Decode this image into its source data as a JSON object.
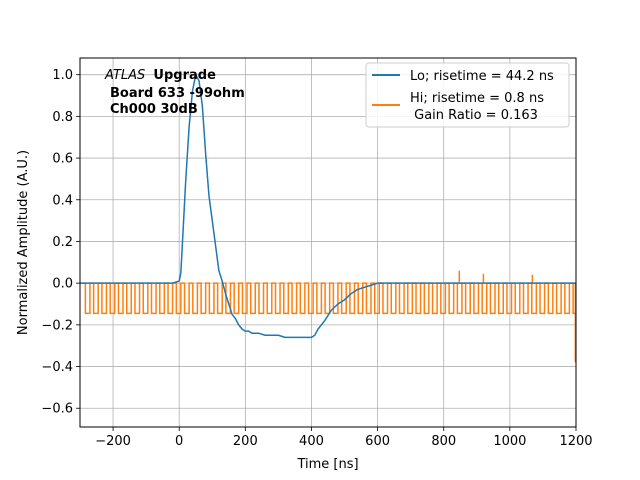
{
  "chart_data": {
    "type": "line",
    "title": "",
    "xlabel": "Time [ns]",
    "ylabel": "Normalized Amplitude (A.U.)",
    "xlim": [
      -300,
      1200
    ],
    "ylim": [
      -0.69,
      1.08
    ],
    "grid": true,
    "legend_position": "top-right",
    "x_ticks": [
      -200,
      0,
      200,
      400,
      600,
      800,
      1000,
      1200
    ],
    "x_tick_labels": [
      "−200",
      "0",
      "200",
      "400",
      "600",
      "800",
      "1000",
      "1200"
    ],
    "y_ticks": [
      -0.6,
      -0.4,
      -0.2,
      0.0,
      0.2,
      0.4,
      0.6,
      0.8,
      1.0
    ],
    "y_tick_labels": [
      "−0.6",
      "−0.4",
      "−0.2",
      "0.0",
      "0.2",
      "0.4",
      "0.6",
      "0.8",
      "1.0"
    ],
    "annotation": {
      "italic": "ATLAS",
      "bold": "Upgrade",
      "line2": "Board 633 -99ohm",
      "line3": "Ch000 30dB"
    },
    "series": [
      {
        "name": "Lo; risetime = 44.2 ns",
        "color": "#1f77b4",
        "x": [
          -300,
          -200,
          -100,
          -20,
          0,
          5,
          10,
          20,
          30,
          40,
          50,
          60,
          70,
          80,
          90,
          100,
          110,
          120,
          130,
          140,
          150,
          160,
          170,
          180,
          190,
          200,
          210,
          220,
          240,
          260,
          280,
          300,
          320,
          340,
          360,
          380,
          400,
          410,
          420,
          440,
          460,
          480,
          500,
          520,
          540,
          560,
          580,
          600,
          700,
          800,
          900,
          1000,
          1100,
          1200
        ],
        "y": [
          0.0,
          0.0,
          0.0,
          0.0,
          0.01,
          0.05,
          0.2,
          0.5,
          0.75,
          0.92,
          1.0,
          0.97,
          0.85,
          0.62,
          0.42,
          0.3,
          0.18,
          0.06,
          0.01,
          -0.05,
          -0.1,
          -0.15,
          -0.17,
          -0.2,
          -0.22,
          -0.23,
          -0.23,
          -0.24,
          -0.24,
          -0.25,
          -0.25,
          -0.25,
          -0.26,
          -0.26,
          -0.26,
          -0.26,
          -0.26,
          -0.25,
          -0.22,
          -0.18,
          -0.13,
          -0.1,
          -0.08,
          -0.05,
          -0.03,
          -0.02,
          -0.01,
          0.0,
          0.0,
          0.0,
          0.0,
          0.0,
          0.0,
          0.0
        ]
      },
      {
        "name": "Hi; risetime = 0.8 ns\n Gain Ratio = 0.163",
        "color": "#ff7f0e",
        "square_wave": {
          "start": -295,
          "end": 1198,
          "period": 25,
          "high": 0.0,
          "low": -0.145,
          "duty_low": 0.55
        },
        "spikes": [
          {
            "x": 847,
            "y": 0.06
          },
          {
            "x": 920,
            "y": 0.045
          },
          {
            "x": 1068,
            "y": 0.04
          }
        ],
        "end_drop": {
          "x": 1198,
          "y": -0.38
        }
      }
    ]
  }
}
